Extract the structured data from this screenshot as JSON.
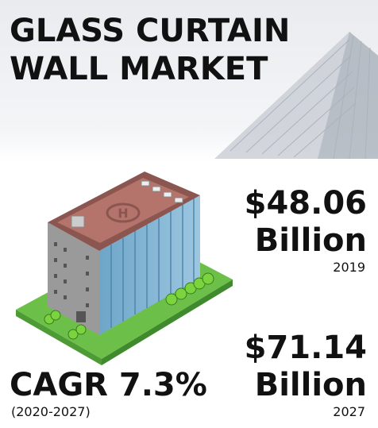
{
  "title": {
    "line1": "GLASS CURTAIN",
    "line2": "WALL MARKET"
  },
  "value_2019": {
    "amount": "$48.06",
    "unit": "Billion",
    "year": "2019"
  },
  "value_2027": {
    "amount": "$71.14",
    "unit": "Billion",
    "year": "2027"
  },
  "cagr": {
    "label": "CAGR 7.3%",
    "period": "(2020-2027)"
  }
}
